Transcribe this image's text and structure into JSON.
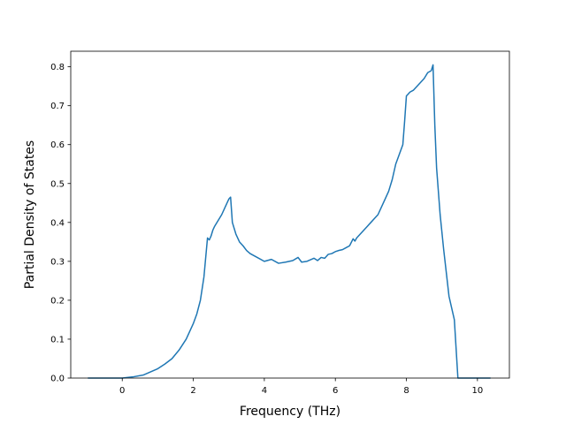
{
  "chart_data": {
    "type": "line",
    "title": "",
    "xlabel": "Frequency (THz)",
    "ylabel": "Partial Density of States",
    "xlim": [
      -1.45,
      10.9
    ],
    "ylim": [
      0.0,
      0.84
    ],
    "xticks": [
      0,
      2,
      4,
      6,
      8,
      10
    ],
    "yticks": [
      0.0,
      0.1,
      0.2,
      0.3,
      0.4,
      0.5,
      0.6,
      0.7,
      0.8
    ],
    "xtick_labels": [
      "0",
      "2",
      "4",
      "6",
      "8",
      "10"
    ],
    "ytick_labels": [
      "0.0",
      "0.1",
      "0.2",
      "0.3",
      "0.4",
      "0.5",
      "0.6",
      "0.7",
      "0.8"
    ],
    "grid": false,
    "line_color": "#1f77b4",
    "series": [
      {
        "x": [
          -0.95,
          0.0,
          0.3,
          0.6,
          0.8,
          1.0,
          1.2,
          1.4,
          1.6,
          1.8,
          2.0,
          2.1,
          2.2,
          2.3,
          2.4,
          2.45,
          2.5,
          2.55,
          2.6,
          2.7,
          2.8,
          2.9,
          3.0,
          3.05,
          3.1,
          3.2,
          3.3,
          3.4,
          3.5,
          3.6,
          3.8,
          4.0,
          4.2,
          4.4,
          4.6,
          4.8,
          4.95,
          5.05,
          5.2,
          5.4,
          5.5,
          5.6,
          5.7,
          5.8,
          5.9,
          6.0,
          6.1,
          6.2,
          6.3,
          6.4,
          6.5,
          6.55,
          6.6,
          6.7,
          6.8,
          6.9,
          7.0,
          7.1,
          7.2,
          7.3,
          7.4,
          7.5,
          7.6,
          7.7,
          7.8,
          7.9,
          7.95,
          8.0,
          8.05,
          8.1,
          8.2,
          8.3,
          8.4,
          8.5,
          8.6,
          8.7,
          8.75,
          8.8,
          8.85,
          8.95,
          9.05,
          9.2,
          9.35,
          9.45,
          9.6,
          10.35
        ],
        "y": [
          0.0,
          0.0,
          0.003,
          0.008,
          0.016,
          0.024,
          0.036,
          0.05,
          0.072,
          0.1,
          0.14,
          0.165,
          0.2,
          0.26,
          0.36,
          0.355,
          0.365,
          0.38,
          0.39,
          0.405,
          0.42,
          0.44,
          0.46,
          0.465,
          0.4,
          0.37,
          0.35,
          0.34,
          0.328,
          0.32,
          0.31,
          0.3,
          0.305,
          0.295,
          0.298,
          0.302,
          0.31,
          0.298,
          0.3,
          0.308,
          0.302,
          0.31,
          0.308,
          0.318,
          0.32,
          0.325,
          0.328,
          0.33,
          0.335,
          0.34,
          0.358,
          0.352,
          0.36,
          0.37,
          0.38,
          0.39,
          0.4,
          0.41,
          0.42,
          0.44,
          0.46,
          0.48,
          0.51,
          0.55,
          0.575,
          0.6,
          0.66,
          0.725,
          0.73,
          0.735,
          0.74,
          0.75,
          0.76,
          0.77,
          0.785,
          0.79,
          0.805,
          0.65,
          0.54,
          0.42,
          0.33,
          0.21,
          0.15,
          0.0,
          0.0,
          0.0
        ]
      }
    ]
  }
}
